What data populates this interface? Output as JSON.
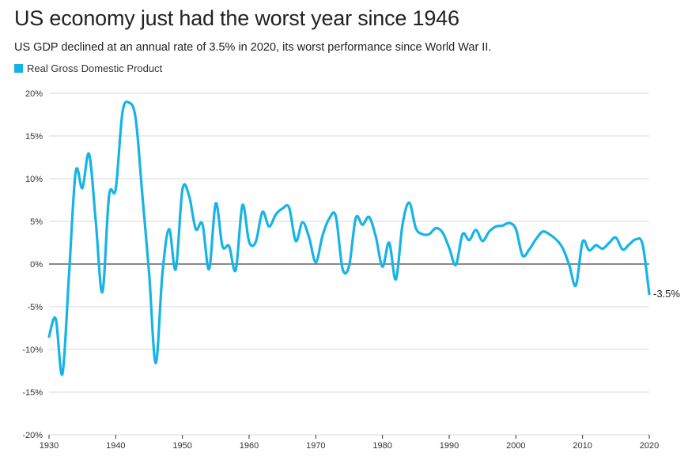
{
  "chart_data": {
    "type": "line",
    "title": "US economy just had the worst year since 1946",
    "subtitle": "US GDP declined at an annual rate of 3.5% in 2020, its worst performance since World War II.",
    "xlabel": "",
    "ylabel": "",
    "xlim": [
      1930,
      2020
    ],
    "ylim": [
      -20,
      20
    ],
    "x_ticks": [
      1930,
      1940,
      1950,
      1960,
      1970,
      1980,
      1990,
      2000,
      2010,
      2020
    ],
    "y_ticks": [
      20,
      15,
      10,
      5,
      0,
      -5,
      -10,
      -15,
      -20
    ],
    "y_tick_labels": [
      "20%",
      "15%",
      "10%",
      "5%",
      "0%",
      "-5%",
      "-10%",
      "-15%",
      "-20%"
    ],
    "x_tick_labels": [
      "1930",
      "1940",
      "1950",
      "1960",
      "1970",
      "1980",
      "1990",
      "2000",
      "2010",
      "2020"
    ],
    "end_label": "-3.5%",
    "color": "#16b4e6",
    "series": [
      {
        "name": "Real Gross Domestic Product",
        "x": [
          1930,
          1931,
          1932,
          1933,
          1934,
          1935,
          1936,
          1937,
          1938,
          1939,
          1940,
          1941,
          1942,
          1943,
          1944,
          1945,
          1946,
          1947,
          1948,
          1949,
          1950,
          1951,
          1952,
          1953,
          1954,
          1955,
          1956,
          1957,
          1958,
          1959,
          1960,
          1961,
          1962,
          1963,
          1964,
          1965,
          1966,
          1967,
          1968,
          1969,
          1970,
          1971,
          1972,
          1973,
          1974,
          1975,
          1976,
          1977,
          1978,
          1979,
          1980,
          1981,
          1982,
          1983,
          1984,
          1985,
          1986,
          1987,
          1988,
          1989,
          1990,
          1991,
          1992,
          1993,
          1994,
          1995,
          1996,
          1997,
          1998,
          1999,
          2000,
          2001,
          2002,
          2003,
          2004,
          2005,
          2006,
          2007,
          2008,
          2009,
          2010,
          2011,
          2012,
          2013,
          2014,
          2015,
          2016,
          2017,
          2018,
          2019,
          2020
        ],
        "values": [
          -8.5,
          -6.4,
          -12.9,
          -1.2,
          10.8,
          8.9,
          12.9,
          5.1,
          -3.3,
          8.0,
          8.8,
          17.7,
          18.9,
          17.0,
          8.0,
          -1.0,
          -11.6,
          -1.1,
          4.1,
          -0.6,
          8.7,
          8.0,
          4.1,
          4.7,
          -0.6,
          7.1,
          2.1,
          2.1,
          -0.7,
          6.9,
          2.6,
          2.6,
          6.1,
          4.4,
          5.8,
          6.5,
          6.6,
          2.7,
          4.9,
          3.1,
          0.2,
          3.3,
          5.3,
          5.6,
          -0.5,
          -0.2,
          5.4,
          4.6,
          5.5,
          3.2,
          -0.3,
          2.5,
          -1.8,
          4.6,
          7.2,
          4.2,
          3.5,
          3.5,
          4.2,
          3.7,
          1.9,
          -0.1,
          3.5,
          2.8,
          4.0,
          2.7,
          3.8,
          4.4,
          4.5,
          4.8,
          4.1,
          1.0,
          1.7,
          2.9,
          3.8,
          3.5,
          2.9,
          1.9,
          -0.1,
          -2.5,
          2.6,
          1.6,
          2.2,
          1.8,
          2.5,
          3.1,
          1.7,
          2.3,
          2.9,
          2.3,
          -3.5
        ]
      }
    ],
    "legend_position": "top-left"
  }
}
